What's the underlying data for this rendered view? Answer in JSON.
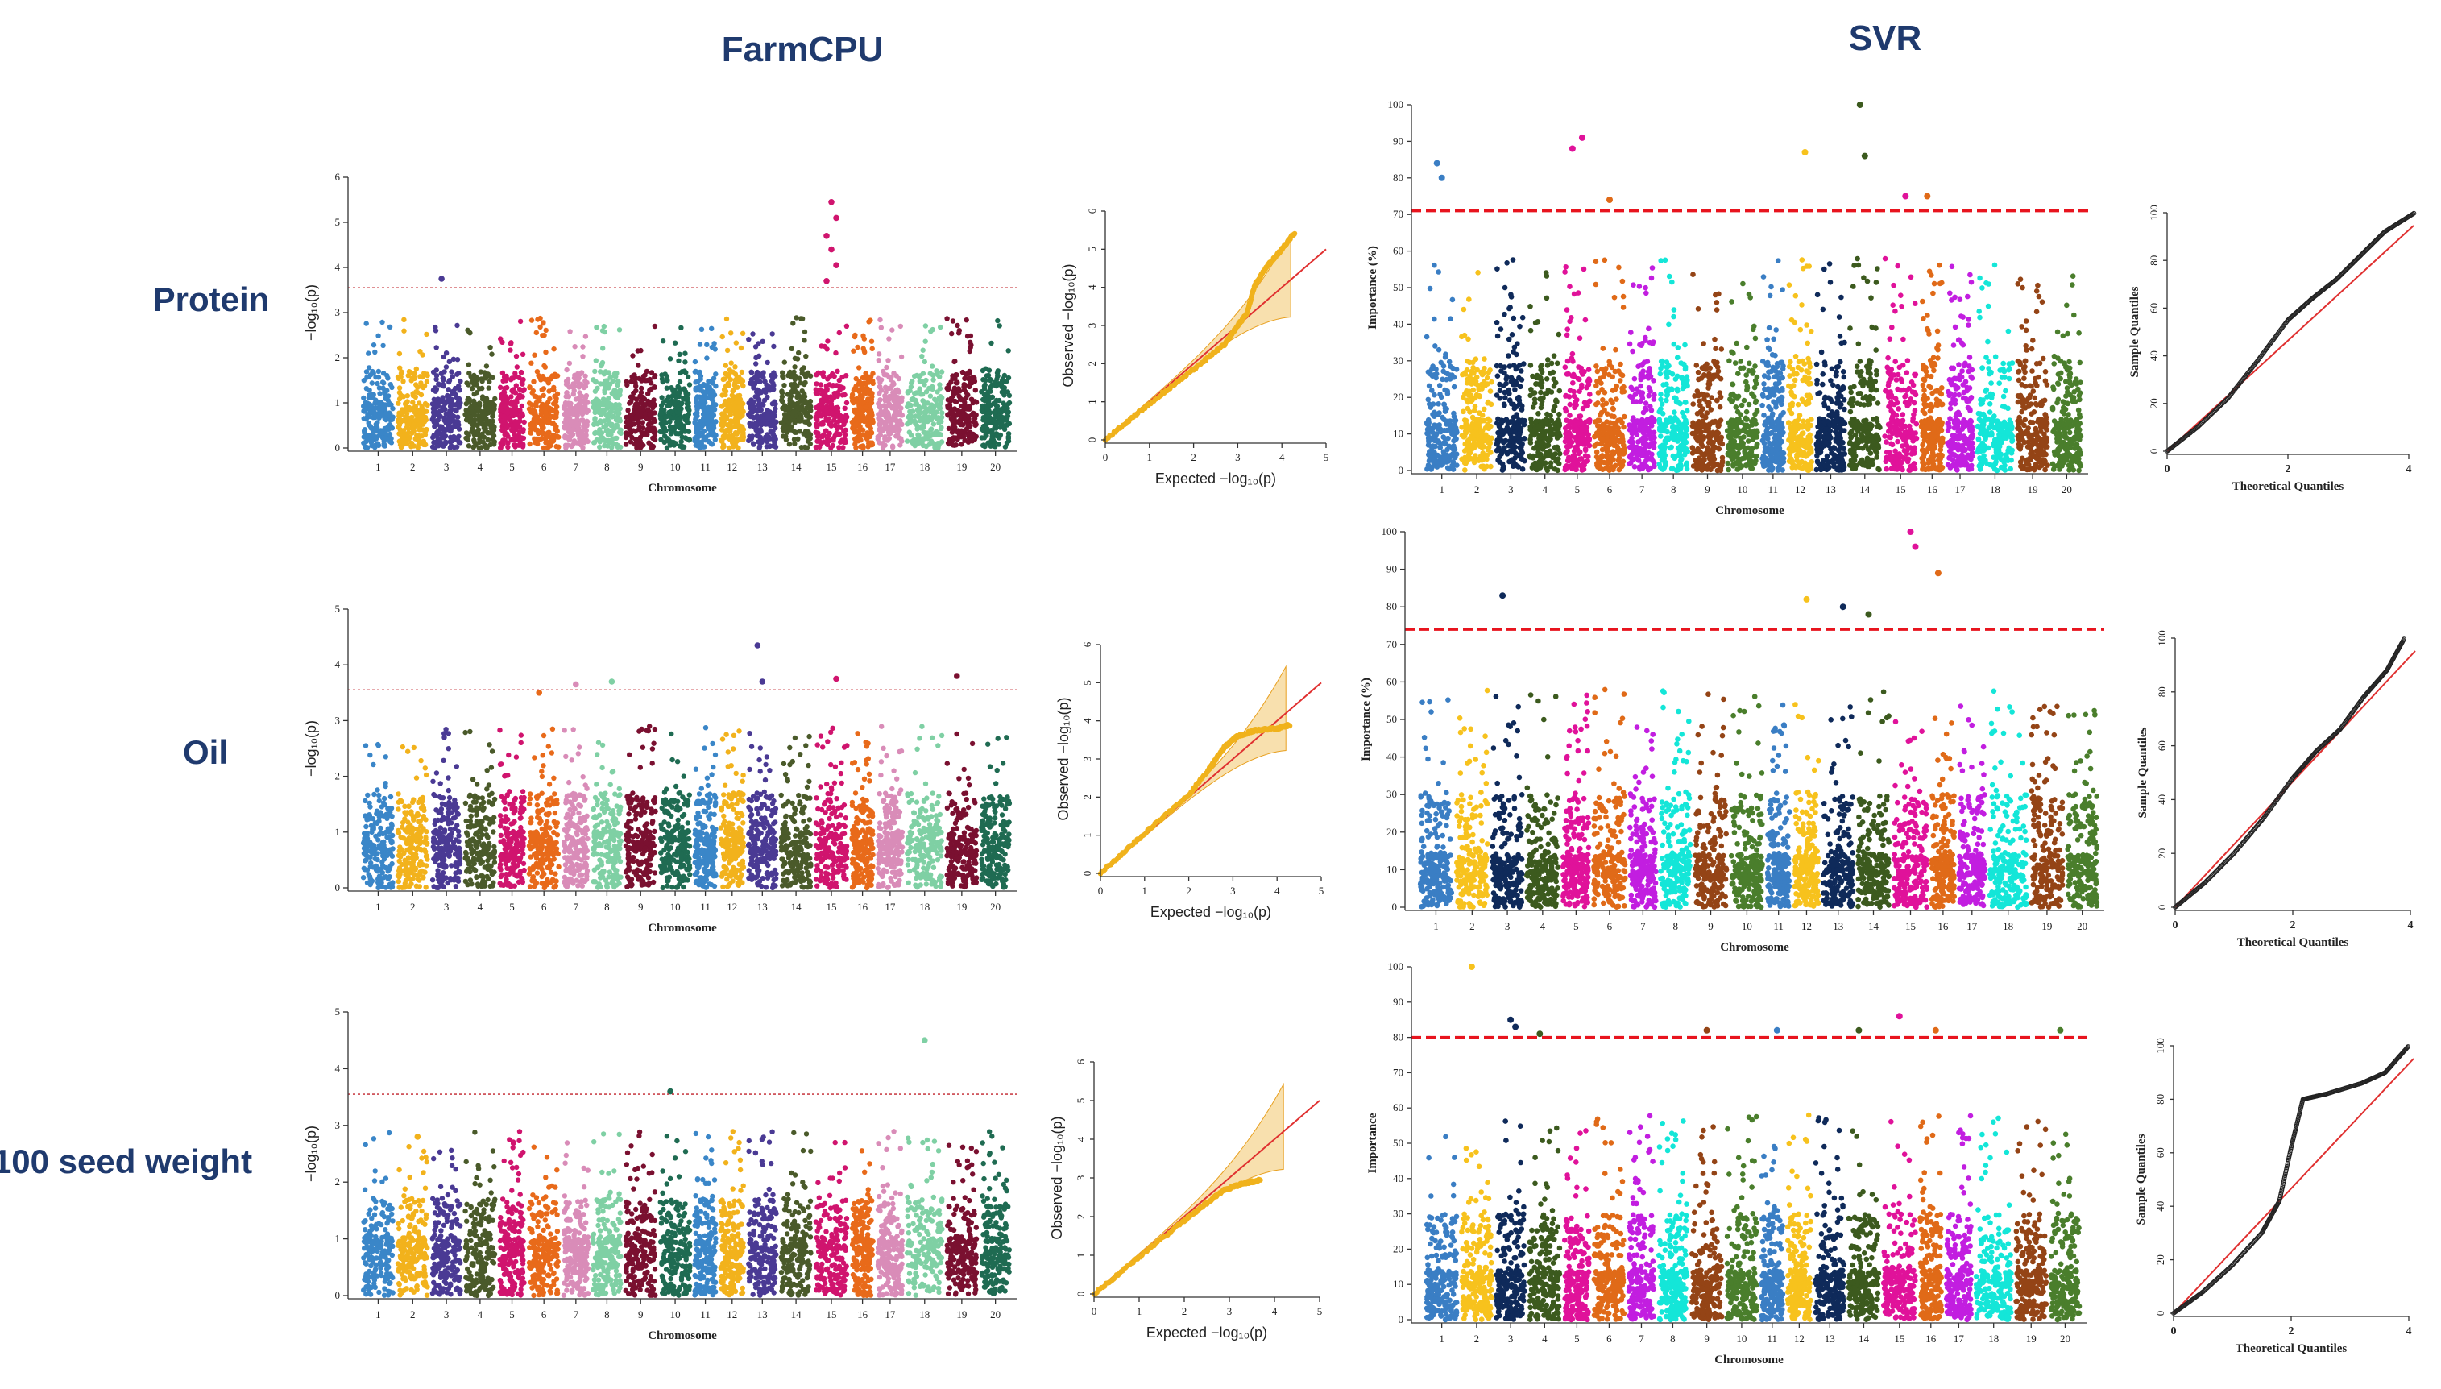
{
  "headers": {
    "left": "FarmCPU",
    "right": "SVR"
  },
  "traits": [
    "Protein",
    "Oil",
    "100 seed weight"
  ],
  "chromosomes": [
    "1",
    "2",
    "3",
    "4",
    "5",
    "6",
    "7",
    "8",
    "9",
    "10",
    "11",
    "12",
    "13",
    "14",
    "15",
    "16",
    "17",
    "18",
    "19",
    "20"
  ],
  "colors": {
    "farmcpu_chromosomes": [
      "#3a86c8",
      "#f2b21c",
      "#4a3a94",
      "#4a5a2a",
      "#d0146e",
      "#e86a1a",
      "#d98cb8",
      "#7fd0a4",
      "#7a1030",
      "#1f6b52",
      "#3a86c8",
      "#f2b21c",
      "#4a3a94",
      "#4a5a2a",
      "#d0146e",
      "#e86a1a",
      "#d98cb8",
      "#7fd0a4",
      "#7a1030",
      "#1f6b52"
    ],
    "svr_chromosomes": [
      "#3a7ec4",
      "#f7c21d",
      "#0f2a5a",
      "#3c5a1e",
      "#e0129a",
      "#e06a18",
      "#c21ee0",
      "#14e6d8",
      "#944416",
      "#4a7e2c",
      "#3a7ec4",
      "#f7c21d",
      "#0f2a5a",
      "#3c5a1e",
      "#e0129a",
      "#e06a18",
      "#c21ee0",
      "#14e6d8",
      "#944416",
      "#4a7e2c"
    ],
    "threshold_farmcpu": "#c0202a",
    "threshold_svr": "#e8141e",
    "qq_ref": "#e03030",
    "qq_points_farmcpu": "#f0b21c",
    "qq_band": "#f3c66c",
    "qq_points_svr": "#222222"
  },
  "chart_data": [
    {
      "panel": "farmcpu-manhattan-protein",
      "type": "scatter",
      "xlabel": "Chromosome",
      "ylabel": "−log₁₀(p)",
      "ylim": [
        0,
        6
      ],
      "yticks": [
        "0",
        "1",
        "2",
        "3",
        "4",
        "5",
        "6"
      ],
      "threshold": 3.55,
      "peaks": [
        {
          "chr": 3,
          "value": 3.75
        },
        {
          "chr": 15,
          "value": 5.45
        },
        {
          "chr": 15,
          "value": 5.1
        },
        {
          "chr": 15,
          "value": 4.7
        },
        {
          "chr": 15,
          "value": 4.4
        },
        {
          "chr": 15,
          "value": 4.05
        },
        {
          "chr": 15,
          "value": 3.7
        }
      ]
    },
    {
      "panel": "farmcpu-qq-protein",
      "type": "scatter",
      "xlabel": "Expected  −log₁₀(p)",
      "ylabel": "Observed  −log₁₀(p)",
      "xlim": [
        0,
        5
      ],
      "ylim": [
        0,
        6
      ],
      "xticks": [
        "0",
        "1",
        "2",
        "3",
        "4",
        "5"
      ],
      "yticks": [
        "0",
        "1",
        "2",
        "3",
        "4",
        "5",
        "6"
      ],
      "curve": [
        [
          0,
          0
        ],
        [
          1,
          0.95
        ],
        [
          2,
          1.85
        ],
        [
          2.7,
          2.5
        ],
        [
          3,
          3.0
        ],
        [
          3.2,
          3.3
        ],
        [
          3.4,
          4.1
        ],
        [
          3.7,
          4.6
        ],
        [
          4.0,
          5.0
        ],
        [
          4.3,
          5.45
        ]
      ]
    },
    {
      "panel": "farmcpu-manhattan-oil",
      "type": "scatter",
      "xlabel": "Chromosome",
      "ylabel": "−log₁₀(p)",
      "ylim": [
        0,
        5
      ],
      "yticks": [
        "0",
        "1",
        "2",
        "3",
        "4",
        "5"
      ],
      "threshold": 3.55,
      "peaks": [
        {
          "chr": 6,
          "value": 3.5
        },
        {
          "chr": 7,
          "value": 3.65
        },
        {
          "chr": 8,
          "value": 3.7
        },
        {
          "chr": 13,
          "value": 4.35
        },
        {
          "chr": 13,
          "value": 3.7
        },
        {
          "chr": 15,
          "value": 3.75
        },
        {
          "chr": 19,
          "value": 3.8
        }
      ]
    },
    {
      "panel": "farmcpu-qq-oil",
      "type": "scatter",
      "xlabel": "Expected  −log₁₀(p)",
      "ylabel": "Observed  −log₁₀(p)",
      "xlim": [
        0,
        5
      ],
      "ylim": [
        0,
        6
      ],
      "xticks": [
        "0",
        "1",
        "2",
        "3",
        "4",
        "5"
      ],
      "yticks": [
        "0",
        "1",
        "2",
        "3",
        "4",
        "5",
        "6"
      ],
      "curve": [
        [
          0,
          0
        ],
        [
          1,
          1.05
        ],
        [
          2,
          2.05
        ],
        [
          2.5,
          2.8
        ],
        [
          2.8,
          3.3
        ],
        [
          3.1,
          3.6
        ],
        [
          3.5,
          3.75
        ],
        [
          4.0,
          3.8
        ],
        [
          4.3,
          3.9
        ]
      ]
    },
    {
      "panel": "farmcpu-manhattan-100sw",
      "type": "scatter",
      "xlabel": "Chromosome",
      "ylabel": "−log₁₀(p)",
      "ylim": [
        0,
        5
      ],
      "yticks": [
        "0",
        "1",
        "2",
        "3",
        "4",
        "5"
      ],
      "threshold": 3.55,
      "peaks": [
        {
          "chr": 10,
          "value": 3.6
        },
        {
          "chr": 18,
          "value": 4.5
        },
        {
          "chr": 2,
          "value": 2.8
        }
      ]
    },
    {
      "panel": "farmcpu-qq-100sw",
      "type": "scatter",
      "xlabel": "Expected  −log₁₀(p)",
      "ylabel": "Observed  −log₁₀(p)",
      "xlim": [
        0,
        5
      ],
      "ylim": [
        0,
        6
      ],
      "xticks": [
        "0",
        "1",
        "2",
        "3",
        "4",
        "5"
      ],
      "yticks": [
        "0",
        "1",
        "2",
        "3",
        "4",
        "5",
        "6"
      ],
      "curve": [
        [
          0,
          0
        ],
        [
          1,
          0.95
        ],
        [
          2,
          1.9
        ],
        [
          2.5,
          2.35
        ],
        [
          2.9,
          2.7
        ],
        [
          3.3,
          2.85
        ],
        [
          3.7,
          2.95
        ]
      ]
    },
    {
      "panel": "svr-manhattan-protein",
      "type": "scatter",
      "xlabel": "Chromosome",
      "ylabel": "Importance (%)",
      "ylim": [
        0,
        100
      ],
      "yticks": [
        "0",
        "10",
        "20",
        "30",
        "40",
        "50",
        "60",
        "70",
        "80",
        "90",
        "100"
      ],
      "threshold": 71,
      "chr_labels": [
        "1",
        "2",
        "3",
        "4",
        "5",
        "6",
        "7",
        "8",
        "9",
        "10",
        "11",
        "12",
        "13",
        "14",
        "15",
        "16",
        "17",
        "18",
        "19",
        "20"
      ],
      "peaks": [
        {
          "chr": 1,
          "value": 84
        },
        {
          "chr": 1,
          "value": 80
        },
        {
          "chr": 5,
          "value": 91
        },
        {
          "chr": 5,
          "value": 88
        },
        {
          "chr": 6,
          "value": 74
        },
        {
          "chr": 12,
          "value": 87
        },
        {
          "chr": 14,
          "value": 100
        },
        {
          "chr": 14,
          "value": 86
        },
        {
          "chr": 15,
          "value": 75
        },
        {
          "chr": 16,
          "value": 75
        }
      ]
    },
    {
      "panel": "svr-qq-protein",
      "type": "scatter",
      "xlabel": "Theoretical Quantiles",
      "ylabel": "Sample Quantiles",
      "xlim": [
        0,
        4
      ],
      "ylim": [
        0,
        100
      ],
      "xticks": [
        "0",
        "2",
        "4"
      ],
      "yticks": [
        "0",
        "20",
        "40",
        "60",
        "80",
        "100"
      ],
      "curve": [
        [
          0,
          0
        ],
        [
          0.5,
          10
        ],
        [
          1,
          22
        ],
        [
          1.5,
          38
        ],
        [
          2,
          55
        ],
        [
          2.4,
          64
        ],
        [
          2.8,
          72
        ],
        [
          3.2,
          82
        ],
        [
          3.6,
          92
        ],
        [
          4.1,
          100
        ]
      ]
    },
    {
      "panel": "svr-manhattan-oil",
      "type": "scatter",
      "xlabel": "Chromosome",
      "ylabel": "Importance (%)",
      "ylim": [
        0,
        100
      ],
      "yticks": [
        "0",
        "10",
        "20",
        "30",
        "40",
        "50",
        "60",
        "70",
        "80",
        "90",
        "100"
      ],
      "threshold": 74,
      "chr_labels": [
        "1",
        "2",
        "3",
        "4",
        "5",
        "6",
        "7",
        "8",
        "9",
        "10",
        "11",
        "12",
        "13",
        "14",
        "15",
        "16",
        "17",
        "18",
        "19",
        "20"
      ],
      "peaks": [
        {
          "chr": 3,
          "value": 83
        },
        {
          "chr": 12,
          "value": 82
        },
        {
          "chr": 13,
          "value": 80
        },
        {
          "chr": 14,
          "value": 78
        },
        {
          "chr": 15,
          "value": 100
        },
        {
          "chr": 15,
          "value": 96
        },
        {
          "chr": 16,
          "value": 89
        }
      ]
    },
    {
      "panel": "svr-qq-oil",
      "type": "scatter",
      "xlabel": "Theoretical Quantiles",
      "ylabel": "Sample Quantiles",
      "xlim": [
        0,
        4
      ],
      "ylim": [
        0,
        100
      ],
      "xticks": [
        "0",
        "2",
        "4"
      ],
      "yticks": [
        "0",
        "20",
        "40",
        "60",
        "80",
        "100"
      ],
      "curve": [
        [
          0,
          0
        ],
        [
          0.5,
          9
        ],
        [
          1,
          20
        ],
        [
          1.5,
          33
        ],
        [
          2,
          48
        ],
        [
          2.4,
          58
        ],
        [
          2.8,
          66
        ],
        [
          3.2,
          78
        ],
        [
          3.6,
          88
        ],
        [
          3.9,
          100
        ]
      ]
    },
    {
      "panel": "svr-manhattan-100sw",
      "type": "scatter",
      "xlabel": "Chromosome",
      "ylabel": "Importance",
      "ylim": [
        0,
        100
      ],
      "yticks": [
        "0",
        "10",
        "20",
        "30",
        "40",
        "50",
        "60",
        "70",
        "80",
        "90",
        "100"
      ],
      "threshold": 80,
      "chr_labels": [
        "1",
        "2",
        "3",
        "4",
        "5",
        "6",
        "7",
        "8",
        "9",
        "10",
        "11",
        "12",
        "13",
        "14",
        "15",
        "16",
        "17",
        "18",
        "19",
        "20"
      ],
      "peaks": [
        {
          "chr": 2,
          "value": 100
        },
        {
          "chr": 3,
          "value": 85
        },
        {
          "chr": 3,
          "value": 83
        },
        {
          "chr": 4,
          "value": 81
        },
        {
          "chr": 9,
          "value": 82
        },
        {
          "chr": 11,
          "value": 82
        },
        {
          "chr": 14,
          "value": 82
        },
        {
          "chr": 15,
          "value": 86
        },
        {
          "chr": 16,
          "value": 82
        },
        {
          "chr": 20,
          "value": 82
        }
      ]
    },
    {
      "panel": "svr-qq-100sw",
      "type": "scatter",
      "xlabel": "Theoretical Quantiles",
      "ylabel": "Sample Quantiles",
      "xlim": [
        0,
        4
      ],
      "ylim": [
        0,
        100
      ],
      "xticks": [
        "0",
        "2",
        "4"
      ],
      "yticks": [
        "0",
        "20",
        "40",
        "60",
        "80",
        "100"
      ],
      "curve": [
        [
          0,
          0
        ],
        [
          0.5,
          8
        ],
        [
          1,
          18
        ],
        [
          1.5,
          30
        ],
        [
          1.8,
          42
        ],
        [
          2,
          62
        ],
        [
          2.2,
          80
        ],
        [
          2.6,
          82
        ],
        [
          3.2,
          86
        ],
        [
          3.6,
          90
        ],
        [
          4,
          100
        ]
      ]
    }
  ]
}
